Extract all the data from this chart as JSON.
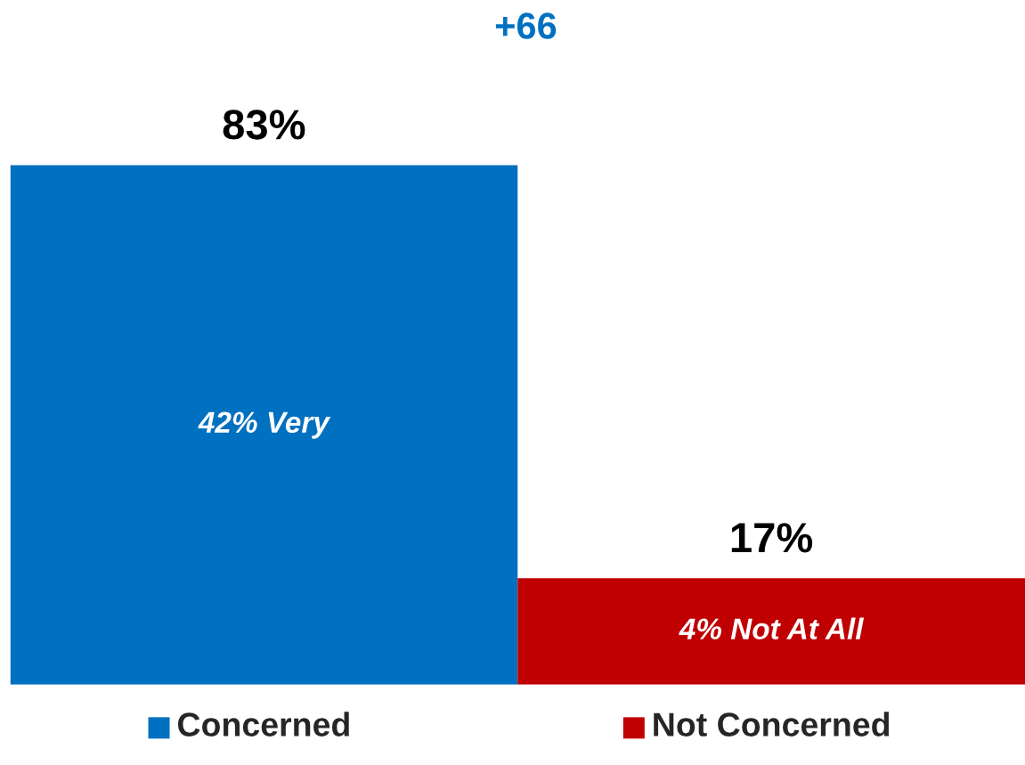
{
  "chart_data": {
    "type": "bar",
    "title": "+66",
    "categories": [
      "Concerned",
      "Not Concerned"
    ],
    "values": [
      83,
      17
    ],
    "colors": [
      "#0070c0",
      "#c00000"
    ],
    "value_labels": [
      "83%",
      "17%"
    ],
    "annotations": [
      "42% Very",
      "4% Not At All"
    ]
  }
}
